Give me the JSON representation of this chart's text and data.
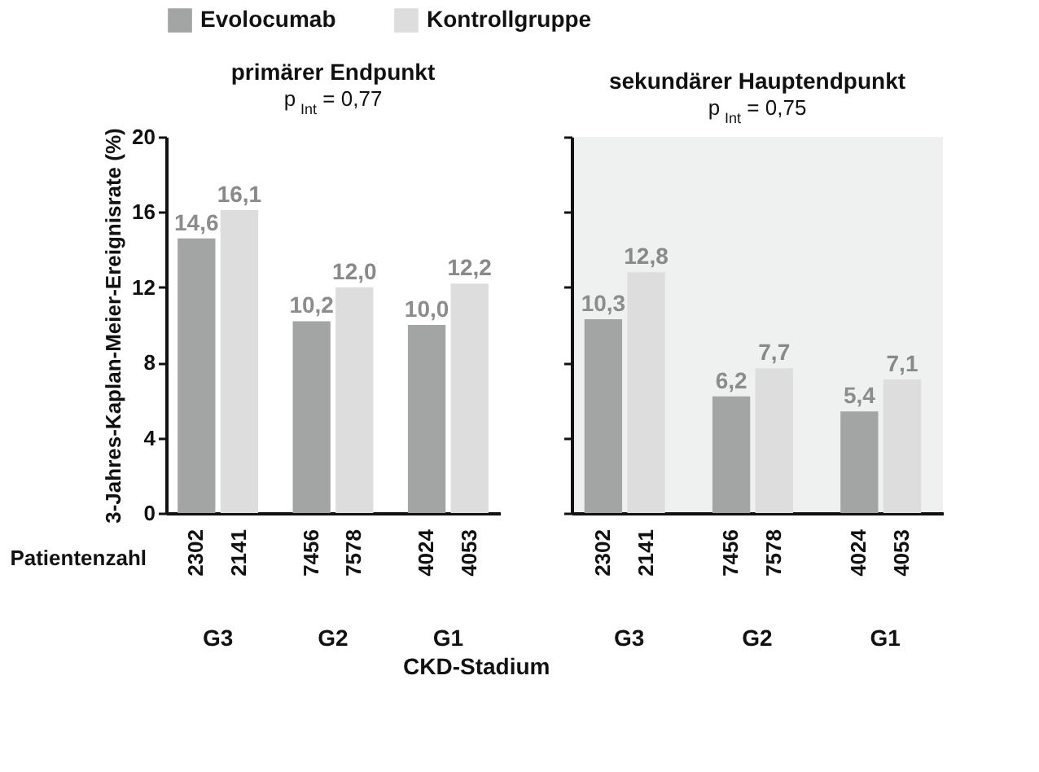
{
  "chart_data": [
    {
      "type": "bar",
      "title": "primärer Endpunkt",
      "subtitle": "p$_{Int}$ = 0,77",
      "ylabel": "3-Jahres-Kaplan-Meier-Ereignisrate (%)",
      "xlabel": "CKD-Stadium",
      "categories": [
        "G3",
        "G2",
        "G1"
      ],
      "series": [
        {
          "name": "Evolocumab",
          "color": "#a3a5a4",
          "values": [
            14.6,
            10.2,
            10.0
          ]
        },
        {
          "name": "Kontrollgruppe",
          "color": "#dcdddc",
          "values": [
            16.1,
            12.0,
            12.2
          ]
        }
      ],
      "value_labels": [
        [
          "14,6",
          "10,2",
          "10,0"
        ],
        [
          "16,1",
          "12,0",
          "12,2"
        ]
      ],
      "ylim": [
        0,
        20
      ],
      "yticks": [
        0,
        4,
        8,
        12,
        16,
        20
      ],
      "legend": "top",
      "grid": false,
      "annotations": [
        "Patientenzahl",
        "2302",
        "2141",
        "7456",
        "7578",
        "4024",
        "4053"
      ]
    },
    {
      "type": "bar",
      "title": "sekundärer Hauptendpunkt",
      "subtitle": "p$_{Int}$ = 0,75",
      "categories": [
        "G3",
        "G2",
        "G1"
      ],
      "series": [
        {
          "name": "Evolocumab",
          "color": "#a3a5a4",
          "values": [
            10.3,
            6.2,
            5.4
          ]
        },
        {
          "name": "Kontrollgruppe",
          "color": "#dcdddc",
          "values": [
            12.8,
            7.7,
            7.1
          ]
        }
      ],
      "value_labels": [
        [
          "10,3",
          "6,2",
          "5,4"
        ],
        [
          "12,8",
          "7,7",
          "7,1"
        ]
      ],
      "ylim": [
        0,
        20
      ],
      "yticks": [
        0,
        4,
        8,
        12,
        16,
        20
      ],
      "tick_labels": "x",
      "legend": false,
      "grid": false,
      "bands": [
        {
          "axis": "x",
          "from": "G3",
          "to": "G1",
          "color": "#eef1ef"
        }
      ],
      "annotations": [
        "2302",
        "2141",
        "7456",
        "7578",
        "4024",
        "4053"
      ]
    }
  ]
}
